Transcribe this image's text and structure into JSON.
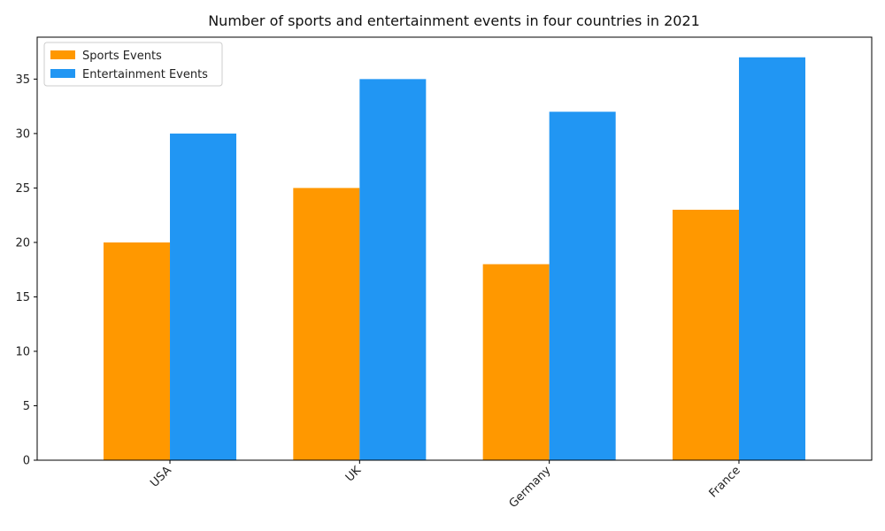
{
  "chart_data": {
    "type": "bar",
    "title": "Number of sports and entertainment events in four countries in 2021",
    "xlabel": "",
    "ylabel": "",
    "categories": [
      "USA",
      "UK",
      "Germany",
      "France"
    ],
    "series": [
      {
        "name": "Sports Events",
        "values": [
          20,
          25,
          18,
          23
        ],
        "color": "#FF9800"
      },
      {
        "name": "Entertainment Events",
        "values": [
          30,
          35,
          32,
          37
        ],
        "color": "#2196F3"
      }
    ],
    "ylim": [
      0,
      38.85
    ],
    "yticks": [
      0,
      5,
      10,
      15,
      20,
      25,
      30,
      35
    ],
    "grid": false,
    "legend_position": "top-left"
  }
}
